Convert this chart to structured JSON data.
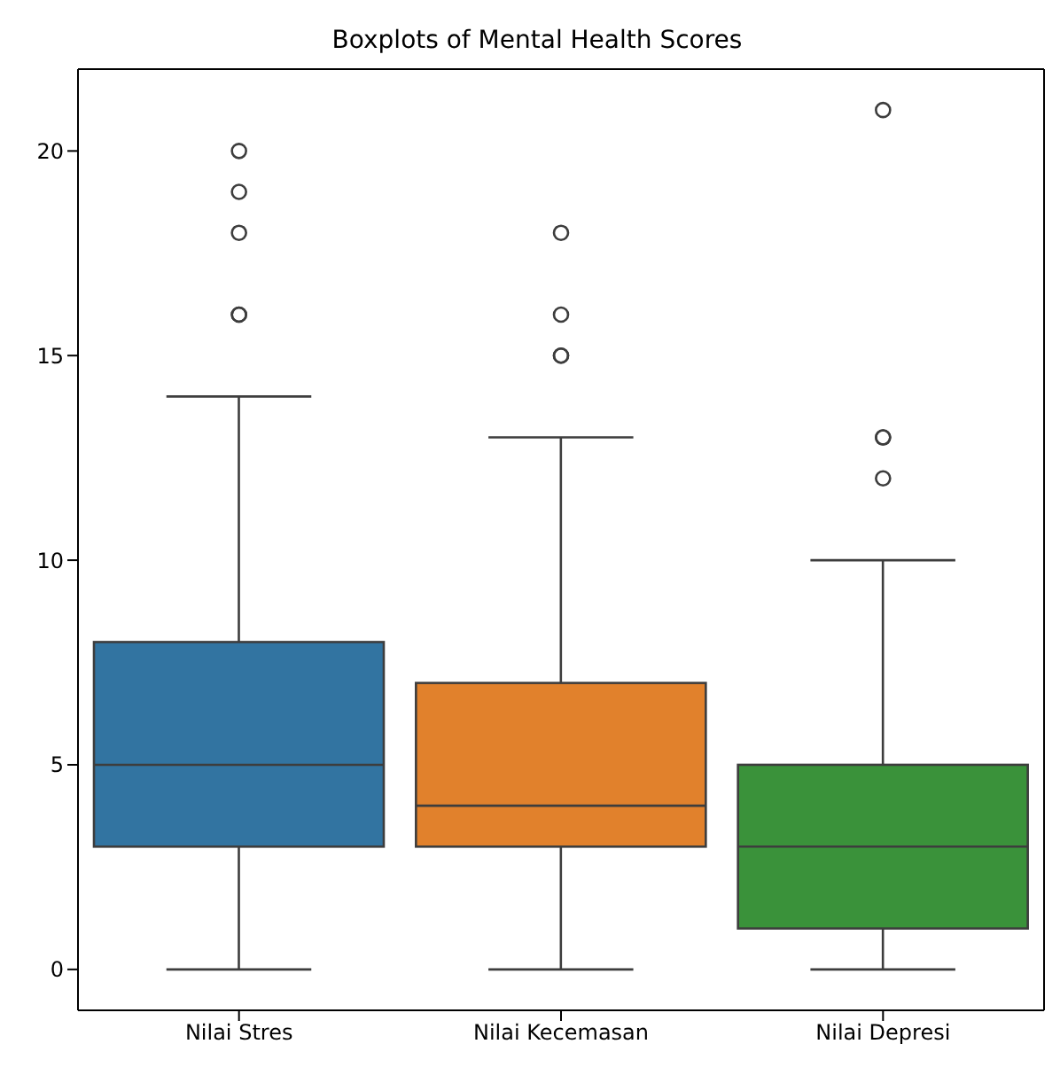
{
  "chart_data": {
    "type": "box",
    "title": "Boxplots of Mental Health Scores",
    "categories": [
      "Nilai Stres",
      "Nilai Kecemasan",
      "Nilai Depresi"
    ],
    "colors": [
      "#3274a1",
      "#e1812c",
      "#3a923a"
    ],
    "boxes": [
      {
        "low": 0,
        "q1": 3,
        "median": 5,
        "q3": 8,
        "high": 14,
        "outliers": [
          16,
          16,
          18,
          19,
          20
        ]
      },
      {
        "low": 0,
        "q1": 3,
        "median": 4,
        "q3": 7,
        "high": 13,
        "outliers": [
          15,
          15,
          16,
          18
        ]
      },
      {
        "low": 0,
        "q1": 1,
        "median": 3,
        "q3": 5,
        "high": 10,
        "outliers": [
          12,
          13,
          13,
          21
        ]
      }
    ],
    "ylim": [
      -1,
      22
    ],
    "yticks": [
      0,
      5,
      10,
      15,
      20
    ],
    "grid": false
  }
}
